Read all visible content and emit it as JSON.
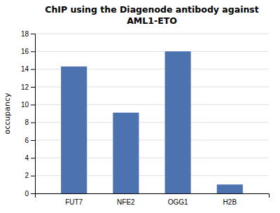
{
  "chart_data": {
    "type": "bar",
    "title": "ChIP using the Diagenode antibody against\nAML1-ETO",
    "categories": [
      "FUT7",
      "NFE2",
      "OGG1",
      "H2B"
    ],
    "values": [
      14.3,
      9.1,
      16.0,
      1.0
    ],
    "color": "#4d72b0",
    "ylabel": "occupancy",
    "ylim": [
      0,
      18
    ],
    "yticks": [
      0,
      2,
      4,
      6,
      8,
      10,
      12,
      14,
      16,
      18
    ],
    "grid": true
  }
}
